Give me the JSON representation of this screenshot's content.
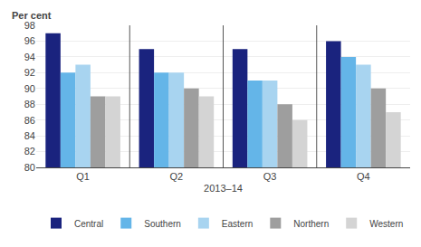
{
  "chart_data": {
    "type": "bar",
    "xlabel": "2013–14",
    "ylabel": "Per cent",
    "categories": [
      "Q1",
      "Q2",
      "Q3",
      "Q4"
    ],
    "series": [
      {
        "name": "Central",
        "color": "#1a237e",
        "values": [
          97,
          95,
          95,
          96
        ]
      },
      {
        "name": "Southern",
        "color": "#64b5e8",
        "values": [
          92,
          92,
          91,
          94
        ]
      },
      {
        "name": "Eastern",
        "color": "#a8d4f0",
        "values": [
          93,
          92,
          91,
          93
        ]
      },
      {
        "name": "Northern",
        "color": "#9e9e9e",
        "values": [
          89,
          90,
          88,
          90
        ]
      },
      {
        "name": "Western",
        "color": "#d4d4d4",
        "values": [
          89,
          89,
          86,
          87
        ]
      }
    ],
    "ylim": [
      80,
      98
    ],
    "yticks": [
      80,
      82,
      84,
      86,
      88,
      90,
      92,
      94,
      96,
      98
    ],
    "grid": true,
    "legend": "bottom"
  }
}
